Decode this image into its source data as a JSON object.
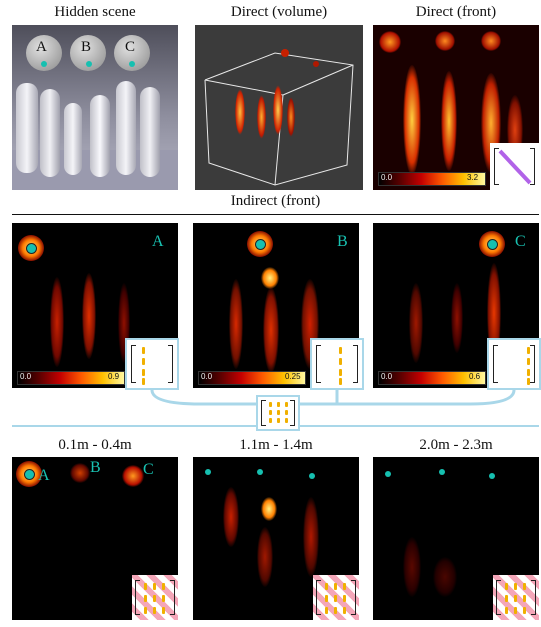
{
  "row1": {
    "titles": {
      "hidden": "Hidden scene",
      "volume": "Direct (volume)",
      "front": "Direct (front)"
    },
    "scene_labels": [
      "A",
      "B",
      "C"
    ],
    "front_colorbar": {
      "min": "0.0",
      "max": "3.2"
    }
  },
  "row2": {
    "section_title": "Indirect (front)",
    "panels": [
      {
        "letter": "A",
        "cb_min": "0.0",
        "cb_max": "0.9"
      },
      {
        "letter": "B",
        "cb_min": "0.0",
        "cb_max": "0.25"
      },
      {
        "letter": "C",
        "cb_min": "0.0",
        "cb_max": "0.6"
      }
    ]
  },
  "row3": {
    "panels": [
      {
        "title": "0.1m - 0.4m",
        "letters": [
          "A",
          "B",
          "C"
        ]
      },
      {
        "title": "1.1m - 1.4m"
      },
      {
        "title": "2.0m - 2.3m"
      }
    ]
  },
  "colors": {
    "accent": "#16c0b0",
    "connector": "#a9d7e9",
    "dash": "#f0b000",
    "diag": "#b163e8",
    "stripe": "#f4a6b8"
  }
}
